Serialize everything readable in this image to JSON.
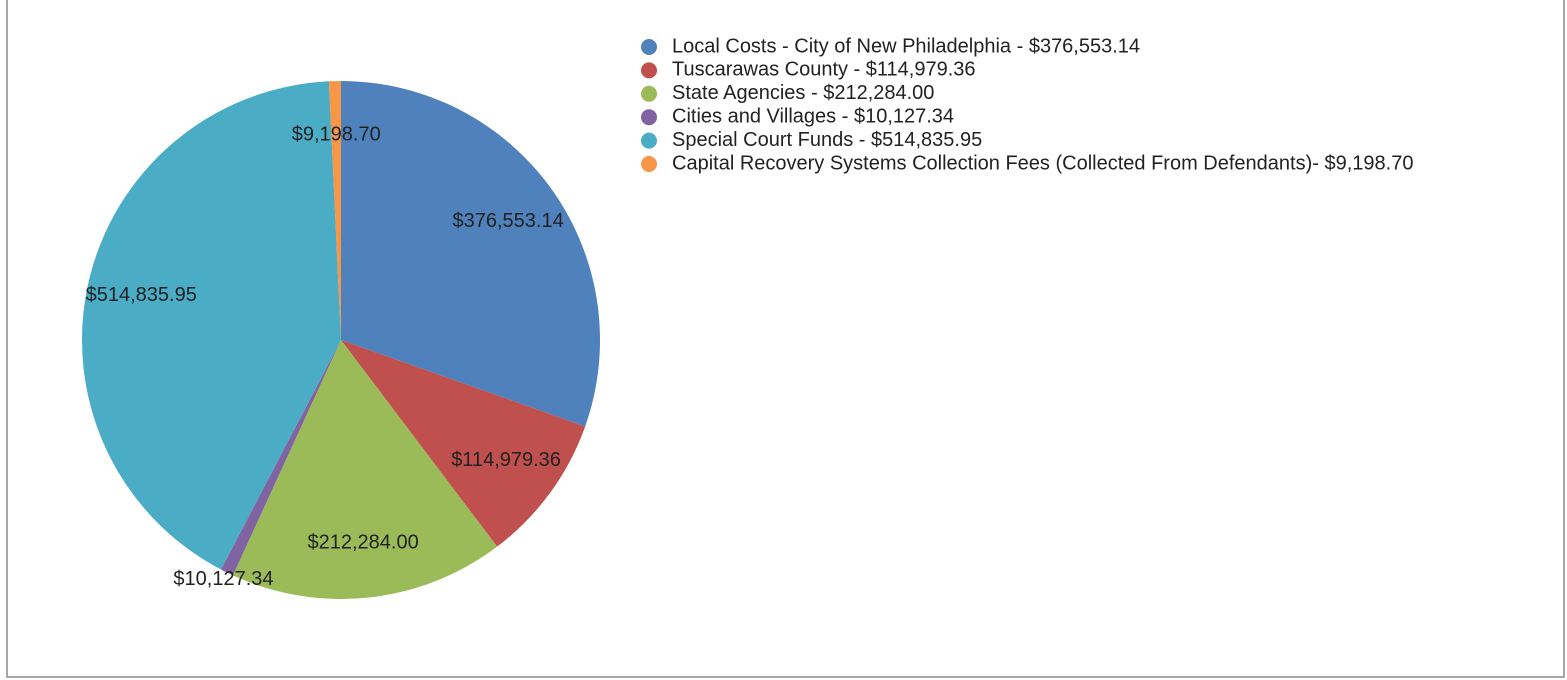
{
  "chart_data": {
    "type": "pie",
    "categories": [
      "Local Costs - City of New Philadelphia - $376,553.14",
      "Tuscarawas County - $114,979.36",
      "State Agencies - $212,284.00",
      "Cities and Villages - $10,127.34",
      "Special Court Funds - $514,835.95",
      "Capital Recovery Systems Collection Fees (Collected From Defendants)- $9,198.70"
    ],
    "values": [
      376553.14,
      114979.36,
      212284.0,
      10127.34,
      514835.95,
      9198.7
    ],
    "value_labels": [
      "$376,553.14",
      "$114,979.36",
      "$212,284.00",
      "$10,127.34",
      "$514,835.95",
      "$9,198.70"
    ],
    "colors": [
      "#4f81bd",
      "#c0504d",
      "#9bbb59",
      "#8064a2",
      "#4bacc6",
      "#f79646"
    ],
    "legend": "right"
  }
}
